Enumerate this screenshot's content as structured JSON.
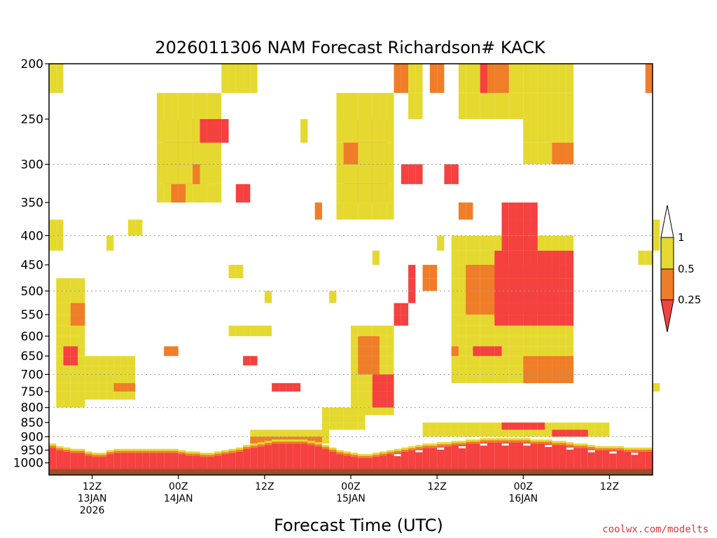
{
  "colors": {
    "band_lt_025": "#f5413f",
    "band_025_05": "#f07d27",
    "band_05_1": "#e5d92f",
    "band_gt_1": "#ffffff",
    "ground": "#994f29",
    "gridline": "#9a9a9a",
    "credit": "#d63a3a"
  },
  "chart_data": {
    "type": "heatmap",
    "title": "2026011306 NAM Forecast Richardson# KACK",
    "xlabel": "Forecast Time (UTC)",
    "ylabel": "",
    "credit": "coolwx.com/modelts",
    "y_scale": "log-pressure (hPa, inverted)",
    "ylim": [
      1050,
      200
    ],
    "y_ticks": [
      200,
      250,
      300,
      350,
      400,
      450,
      500,
      550,
      600,
      650,
      700,
      750,
      800,
      850,
      900,
      950,
      1000
    ],
    "y_dotted_gridlines": [
      300,
      400,
      500,
      700,
      800,
      900
    ],
    "xlim_forecast_hours": [
      0,
      84
    ],
    "x_ticks": [
      {
        "hour": 6,
        "line1": "12Z",
        "line2": "13JAN",
        "line3": "2026"
      },
      {
        "hour": 18,
        "line1": "00Z",
        "line2": "14JAN",
        "line3": ""
      },
      {
        "hour": 30,
        "line1": "12Z",
        "line2": "",
        "line3": ""
      },
      {
        "hour": 42,
        "line1": "00Z",
        "line2": "15JAN",
        "line3": ""
      },
      {
        "hour": 54,
        "line1": "12Z",
        "line2": "",
        "line3": ""
      },
      {
        "hour": 66,
        "line1": "00Z",
        "line2": "16JAN",
        "line3": ""
      },
      {
        "hour": 78,
        "line1": "12Z",
        "line2": "",
        "line3": ""
      }
    ],
    "colorbar": {
      "levels": [
        "1",
        "0.5",
        "0.25"
      ],
      "bands": [
        {
          "range": "> 1",
          "color": "#ffffff"
        },
        {
          "range": "0.5 - 1",
          "color": "#e5d92f"
        },
        {
          "range": "0.25 - 0.5",
          "color": "#f07d27"
        },
        {
          "range": "< 0.25",
          "color": "#f5413f"
        }
      ]
    },
    "cell_size": {
      "hours": 1,
      "hpa": 25
    },
    "regions": [
      {
        "name": "upper-left-200mb",
        "h": [
          0,
          2
        ],
        "p": [
          200,
          225
        ],
        "cls": 2
      },
      {
        "name": "upper-patch-14jan-250",
        "h": [
          16,
          22
        ],
        "p": [
          250,
          325
        ],
        "cls": 0
      },
      {
        "name": "upper-patch-14jan-250-y",
        "h": [
          15,
          24
        ],
        "p": [
          225,
          350
        ],
        "cls": 2
      },
      {
        "name": "upper-patch-14jan-orange",
        "h": [
          17,
          19
        ],
        "p": [
          325,
          350
        ],
        "cls": 1
      },
      {
        "name": "upper-patch-14jan-red2",
        "h": [
          21,
          25
        ],
        "p": [
          250,
          275
        ],
        "cls": 0
      },
      {
        "name": "upper-patch-14jan-y2",
        "h": [
          24,
          29
        ],
        "p": [
          200,
          225
        ],
        "cls": 2
      },
      {
        "name": "upper-patch-14jan-red3",
        "h": [
          26,
          28
        ],
        "p": [
          325,
          350
        ],
        "cls": 0
      },
      {
        "name": "upper-patch-15jan-red",
        "h": [
          41,
          47
        ],
        "p": [
          250,
          350
        ],
        "cls": 0
      },
      {
        "name": "upper-patch-15jan-y",
        "h": [
          40,
          48
        ],
        "p": [
          225,
          375
        ],
        "cls": 2
      },
      {
        "name": "upper-patch-15jan-orange",
        "h": [
          41,
          43
        ],
        "p": [
          275,
          300
        ],
        "cls": 1
      },
      {
        "name": "upper-patch-15jan-red2",
        "h": [
          49,
          52
        ],
        "p": [
          300,
          325
        ],
        "cls": 0
      },
      {
        "name": "upper-patch-15jan-y2",
        "h": [
          50,
          52
        ],
        "p": [
          200,
          250
        ],
        "cls": 2
      },
      {
        "name": "upper-patch-15jan-o2",
        "h": [
          48,
          50
        ],
        "p": [
          200,
          225
        ],
        "cls": 1
      },
      {
        "name": "upper-patch-16jan-y",
        "h": [
          57,
          66
        ],
        "p": [
          200,
          250
        ],
        "cls": 2
      },
      {
        "name": "upper-patch-16jan-y2",
        "h": [
          66,
          73
        ],
        "p": [
          200,
          300
        ],
        "cls": 2
      },
      {
        "name": "upper-patch-16jan-o",
        "h": [
          70,
          73
        ],
        "p": [
          275,
          300
        ],
        "cls": 1
      },
      {
        "name": "upper-patch-16jan-o2",
        "h": [
          61,
          64
        ],
        "p": [
          200,
          225
        ],
        "cls": 1
      },
      {
        "name": "upper-patch-16jan-r",
        "h": [
          60,
          61
        ],
        "p": [
          200,
          225
        ],
        "cls": 0
      },
      {
        "name": "mid-patch-16jan-y",
        "h": [
          56,
          73
        ],
        "p": [
          400,
          725
        ],
        "cls": 2
      },
      {
        "name": "mid-patch-16jan-o",
        "h": [
          58,
          71
        ],
        "p": [
          450,
          550
        ],
        "cls": 1
      },
      {
        "name": "mid-patch-16jan-r",
        "h": [
          62,
          73
        ],
        "p": [
          425,
          575
        ],
        "cls": 0
      },
      {
        "name": "mid-patch-16jan-r2",
        "h": [
          63,
          68
        ],
        "p": [
          350,
          425
        ],
        "cls": 0
      },
      {
        "name": "mid-patch-16jan-o3",
        "h": [
          66,
          73
        ],
        "p": [
          650,
          725
        ],
        "cls": 1
      },
      {
        "name": "mid-patch-16jan-r3",
        "h": [
          59,
          63
        ],
        "p": [
          625,
          650
        ],
        "cls": 0
      },
      {
        "name": "left-slope-y",
        "h": [
          1,
          5
        ],
        "p": [
          475,
          800
        ],
        "cls": 2
      },
      {
        "name": "left-slope-o",
        "h": [
          3,
          5
        ],
        "p": [
          525,
          575
        ],
        "cls": 1
      },
      {
        "name": "left-slope-r",
        "h": [
          2,
          4
        ],
        "p": [
          625,
          675
        ],
        "cls": 0
      },
      {
        "name": "left-slope-y2",
        "h": [
          5,
          12
        ],
        "p": [
          650,
          775
        ],
        "cls": 2
      },
      {
        "name": "left-slope-o2",
        "h": [
          9,
          12
        ],
        "p": [
          725,
          750
        ],
        "cls": 1
      },
      {
        "name": "left-400-y",
        "h": [
          0,
          2
        ],
        "p": [
          375,
          425
        ],
        "cls": 2
      },
      {
        "name": "mid-15jan-y",
        "h": [
          42,
          48
        ],
        "p": [
          575,
          825
        ],
        "cls": 2
      },
      {
        "name": "mid-15jan-r",
        "h": [
          45,
          48
        ],
        "p": [
          700,
          800
        ],
        "cls": 0
      },
      {
        "name": "mid-15jan-o",
        "h": [
          43,
          46
        ],
        "p": [
          600,
          700
        ],
        "cls": 1
      },
      {
        "name": "mid-15jan-y2",
        "h": [
          38,
          44
        ],
        "p": [
          800,
          875
        ],
        "cls": 2
      },
      {
        "name": "mid-15jan-r2",
        "h": [
          48,
          50
        ],
        "p": [
          525,
          575
        ],
        "cls": 0
      },
      {
        "name": "mid-14jan-r",
        "h": [
          27,
          29
        ],
        "p": [
          650,
          675
        ],
        "cls": 0
      },
      {
        "name": "mid-14jan-y",
        "h": [
          25,
          31
        ],
        "p": [
          575,
          600
        ],
        "cls": 2
      },
      {
        "name": "mid-14jan-o",
        "h": [
          16,
          18
        ],
        "p": [
          625,
          650
        ],
        "cls": 1
      },
      {
        "name": "mid-14jan-r2",
        "h": [
          31,
          35
        ],
        "p": [
          725,
          750
        ],
        "cls": 0
      },
      {
        "name": "low-y-15jan-16jan",
        "h": [
          52,
          78
        ],
        "p": [
          850,
          900
        ],
        "cls": 2
      },
      {
        "name": "low-r-16jan",
        "h": [
          63,
          69
        ],
        "p": [
          850,
          875
        ],
        "cls": 0
      },
      {
        "name": "low-r-16jan-b",
        "h": [
          70,
          75
        ],
        "p": [
          875,
          900
        ],
        "cls": 0
      },
      {
        "name": "low-y-14jan",
        "h": [
          28,
          39
        ],
        "p": [
          875,
          925
        ],
        "cls": 2
      },
      {
        "name": "low-o-14jan",
        "h": [
          28,
          38
        ],
        "p": [
          900,
          925
        ],
        "cls": 1
      },
      {
        "name": "scatter-1",
        "h": [
          20,
          21
        ],
        "p": [
          300,
          325
        ],
        "cls": 1
      },
      {
        "name": "scatter-2",
        "h": [
          35,
          36
        ],
        "p": [
          250,
          275
        ],
        "cls": 2
      },
      {
        "name": "scatter-3",
        "h": [
          55,
          57
        ],
        "p": [
          300,
          325
        ],
        "cls": 0
      },
      {
        "name": "scatter-4",
        "h": [
          57,
          59
        ],
        "p": [
          350,
          375
        ],
        "cls": 1
      },
      {
        "name": "scatter-5",
        "h": [
          52,
          54
        ],
        "p": [
          450,
          500
        ],
        "cls": 1
      },
      {
        "name": "scatter-6",
        "h": [
          50,
          51
        ],
        "p": [
          450,
          525
        ],
        "cls": 0
      },
      {
        "name": "scatter-7",
        "h": [
          37,
          38
        ],
        "p": [
          350,
          375
        ],
        "cls": 1
      },
      {
        "name": "scatter-8",
        "h": [
          53,
          55
        ],
        "p": [
          200,
          225
        ],
        "cls": 1
      },
      {
        "name": "scatter-9",
        "h": [
          83,
          84
        ],
        "p": [
          200,
          225
        ],
        "cls": 1
      },
      {
        "name": "scatter-10",
        "h": [
          84,
          85
        ],
        "p": [
          375,
          425
        ],
        "cls": 2
      },
      {
        "name": "scatter-11",
        "h": [
          82,
          84
        ],
        "p": [
          425,
          450
        ],
        "cls": 2
      },
      {
        "name": "scatter-12",
        "h": [
          8,
          9
        ],
        "p": [
          400,
          425
        ],
        "cls": 2
      },
      {
        "name": "scatter-13",
        "h": [
          11,
          13
        ],
        "p": [
          375,
          400
        ],
        "cls": 2
      },
      {
        "name": "scatter-14",
        "h": [
          25,
          27
        ],
        "p": [
          450,
          475
        ],
        "cls": 2
      },
      {
        "name": "scatter-15",
        "h": [
          30,
          31
        ],
        "p": [
          500,
          525
        ],
        "cls": 2
      },
      {
        "name": "scatter-16",
        "h": [
          39,
          40
        ],
        "p": [
          500,
          525
        ],
        "cls": 2
      },
      {
        "name": "scatter-17",
        "h": [
          45,
          46
        ],
        "p": [
          425,
          450
        ],
        "cls": 2
      },
      {
        "name": "scatter-18",
        "h": [
          56,
          57
        ],
        "p": [
          625,
          650
        ],
        "cls": 1
      },
      {
        "name": "scatter-19",
        "h": [
          54,
          55
        ],
        "p": [
          400,
          425
        ],
        "cls": 2
      },
      {
        "name": "scatter-20",
        "h": [
          84,
          85
        ],
        "p": [
          725,
          750
        ],
        "cls": 2
      }
    ],
    "boundary_layer": {
      "description": "near-surface layer of Ri < 0.25 with interleaved 0.25–0.5 and 0.5–1 bands, thickest 00Z–12Z 14JAN and near 00Z 16JAN; white gaps above the surface over 15JAN–16JAN",
      "base_hpa": 1025,
      "top_hpa_by_hour": [
        925,
        935,
        940,
        945,
        945,
        955,
        960,
        960,
        950,
        945,
        945,
        945,
        945,
        945,
        945,
        945,
        945,
        945,
        950,
        955,
        955,
        960,
        960,
        955,
        950,
        945,
        940,
        930,
        925,
        920,
        915,
        910,
        910,
        910,
        910,
        910,
        915,
        920,
        930,
        940,
        950,
        955,
        960,
        965,
        965,
        960,
        955,
        950,
        945,
        940,
        935,
        930,
        925,
        925,
        920,
        920,
        915,
        915,
        910,
        910,
        905,
        905,
        905,
        905,
        905,
        905,
        905,
        910,
        910,
        910,
        915,
        915,
        920,
        925,
        925,
        930,
        935,
        935,
        935,
        935,
        940,
        940,
        940,
        940
      ]
    },
    "ground_top_hpa": 1025
  }
}
